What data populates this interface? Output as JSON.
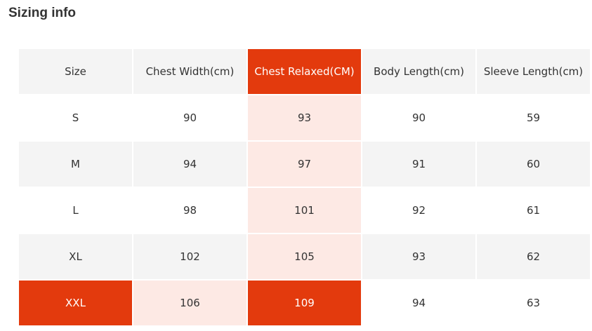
{
  "header": {
    "title": "Sizing info"
  },
  "table": {
    "columns": [
      "Size",
      "Chest Width(cm)",
      "Chest Relaxed(CM)",
      "Body Length(cm)",
      "Sleeve Length(cm)"
    ],
    "rows": [
      [
        "S",
        90,
        93,
        90,
        59
      ],
      [
        "M",
        94,
        97,
        91,
        60
      ],
      [
        "L",
        98,
        101,
        92,
        61
      ],
      [
        "XL",
        102,
        105,
        93,
        62
      ],
      [
        "XXL",
        106,
        109,
        94,
        63
      ]
    ]
  }
}
